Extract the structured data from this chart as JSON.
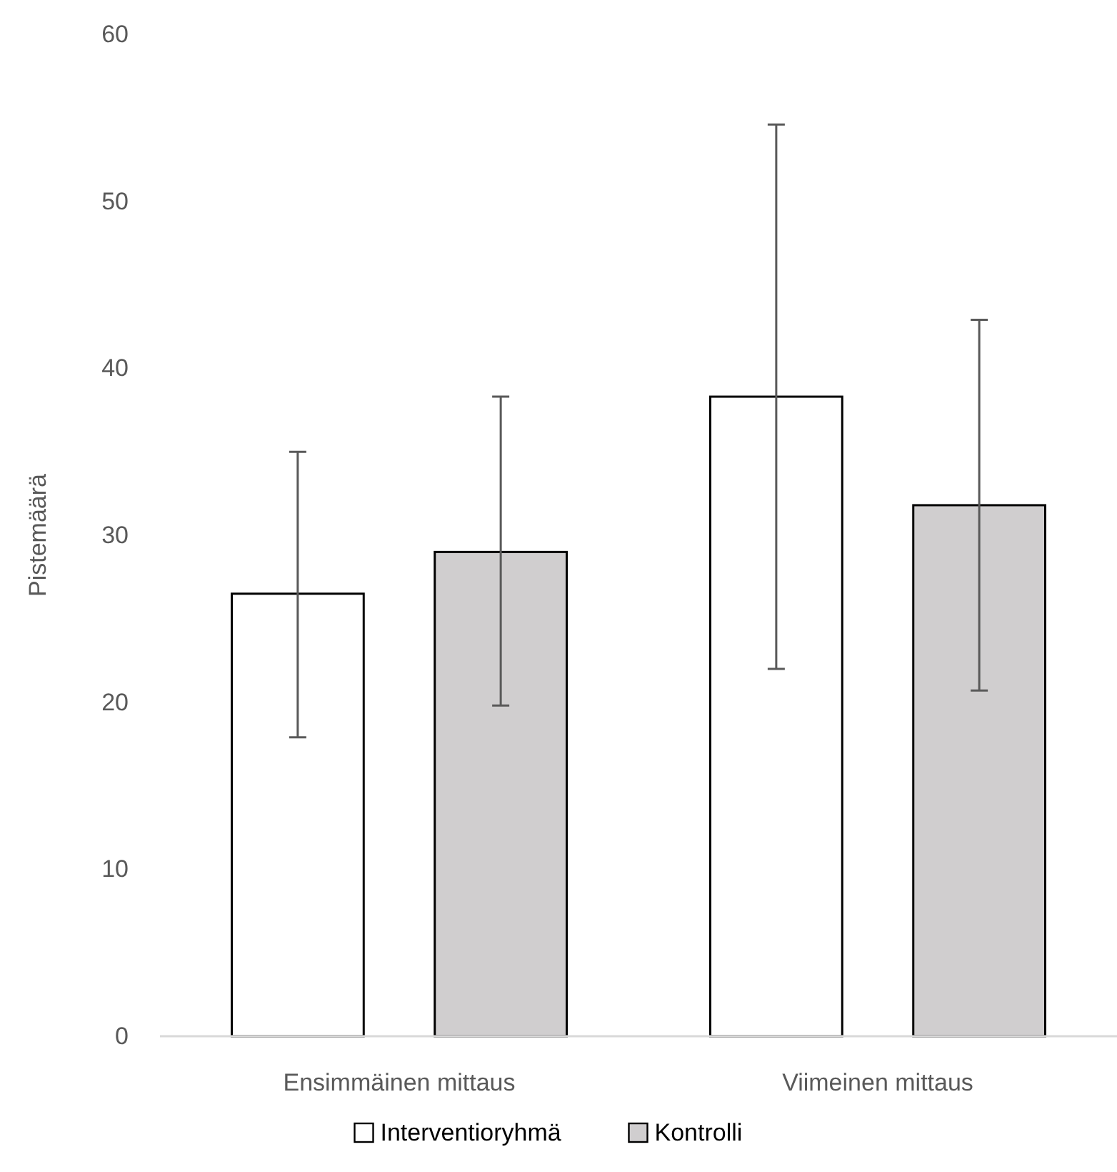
{
  "chart_data": {
    "type": "bar",
    "ylabel": "Pistemäärä",
    "categories": [
      "Ensimmäinen mittaus",
      "Viimeinen mittaus"
    ],
    "series": [
      {
        "name": "Interventioryhmä",
        "color": "#ffffff",
        "values": [
          26.5,
          38.3
        ],
        "errors": [
          [
            17.9,
            35.0
          ],
          [
            22.0,
            54.6
          ]
        ]
      },
      {
        "name": "Kontrolli",
        "color": "#d0cecf",
        "values": [
          29.0,
          31.8
        ],
        "errors": [
          [
            19.8,
            38.3
          ],
          [
            20.7,
            42.9
          ]
        ]
      }
    ],
    "ylim": [
      0,
      60
    ],
    "yticks": [
      0,
      10,
      20,
      30,
      40,
      50,
      60
    ],
    "grid": false,
    "legend": "bottom"
  }
}
